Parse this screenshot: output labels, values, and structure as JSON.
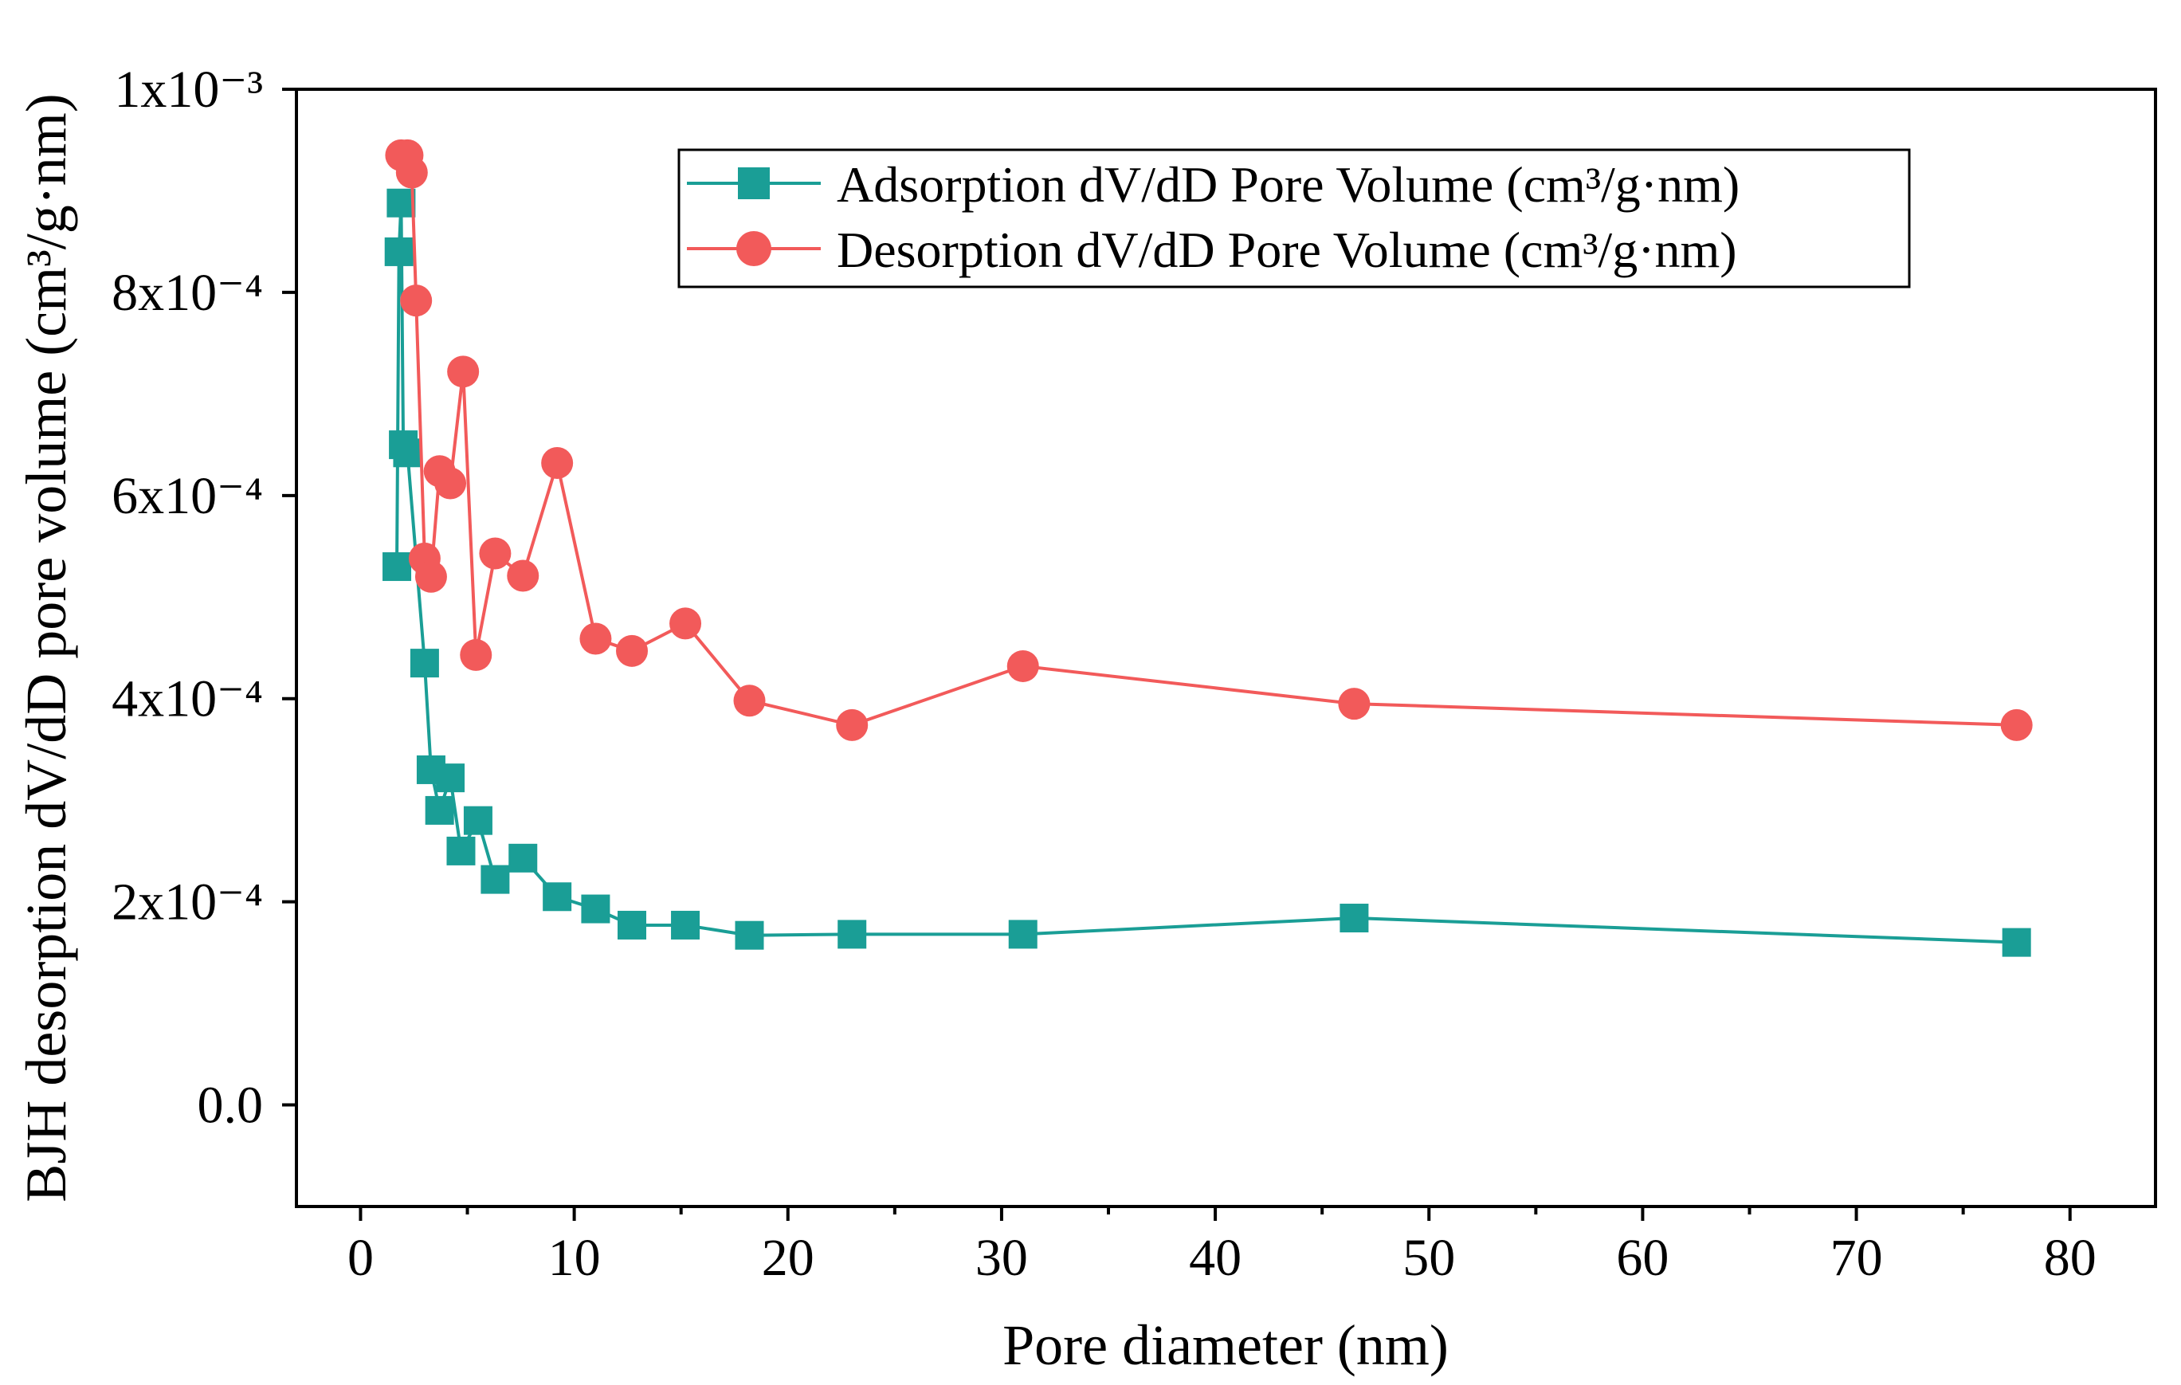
{
  "chart_data": {
    "type": "line",
    "title": "",
    "xlabel": "Pore diameter (nm)",
    "ylabel": "BJH desorption dV/dD pore volume (cm³/g·nm)",
    "xlim": [
      -3,
      84
    ],
    "ylim": [
      -0.0001,
      0.001
    ],
    "x_ticks": [
      0,
      10,
      20,
      30,
      40,
      50,
      60,
      70,
      80
    ],
    "x_tick_labels": [
      "0",
      "10",
      "20",
      "30",
      "40",
      "50",
      "60",
      "70",
      "80"
    ],
    "y_ticks": [
      0,
      0.0002,
      0.0004,
      0.0006,
      0.0008,
      0.001
    ],
    "y_tick_labels": [
      "0.0",
      "2x10⁻⁴",
      "4x10⁻⁴",
      "6x10⁻⁴",
      "8x10⁻⁴",
      "1x10⁻³"
    ],
    "grid": false,
    "legend_position": "top-right",
    "series": [
      {
        "name": "Adsorption dV/dD Pore Volume (cm³/g·nm)",
        "color": "#1a9e96",
        "marker": "square",
        "x": [
          1.7,
          1.8,
          1.9,
          2.0,
          2.2,
          3.0,
          3.3,
          3.7,
          4.2,
          4.7,
          5.5,
          6.3,
          7.6,
          9.2,
          11.0,
          12.7,
          15.2,
          18.2,
          23.0,
          31.0,
          46.5,
          77.5
        ],
        "values": [
          0.00053,
          0.00084,
          0.000888,
          0.00065,
          0.000642,
          0.000435,
          0.00033,
          0.00029,
          0.000322,
          0.00025,
          0.00028,
          0.000222,
          0.000243,
          0.000205,
          0.000193,
          0.000177,
          0.000177,
          0.000167,
          0.000168,
          0.000168,
          0.000184,
          0.00016
        ]
      },
      {
        "name": "Desorption dV/dD Pore Volume (cm³/g·nm)",
        "color": "#f25a5a",
        "marker": "circle",
        "x": [
          1.9,
          2.2,
          2.4,
          2.6,
          3.0,
          3.3,
          3.7,
          4.2,
          4.8,
          5.4,
          6.3,
          7.6,
          9.2,
          11.0,
          12.7,
          15.2,
          18.2,
          23.0,
          31.0,
          46.5,
          77.5
        ],
        "values": [
          0.000935,
          0.000935,
          0.000918,
          0.000792,
          0.000538,
          0.00052,
          0.000624,
          0.000612,
          0.000722,
          0.000443,
          0.000543,
          0.000521,
          0.000632,
          0.000459,
          0.000447,
          0.000474,
          0.000398,
          0.000374,
          0.000432,
          0.000395,
          0.000374
        ]
      }
    ]
  }
}
